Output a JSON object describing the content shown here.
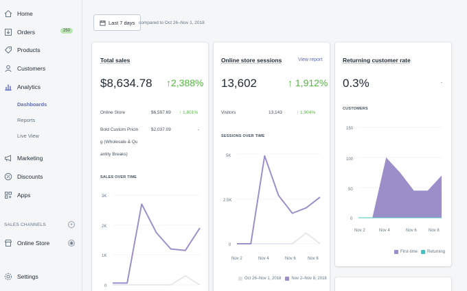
{
  "nav": {
    "home": "Home",
    "orders": "Orders",
    "orders_badge": "250",
    "products": "Products",
    "customers": "Customers",
    "analytics": "Analytics",
    "dashboards": "Dashboards",
    "reports": "Reports",
    "live_view": "Live View",
    "marketing": "Marketing",
    "discounts": "Discounts",
    "apps": "Apps",
    "sales_channels": "SALES CHANNELS",
    "online_store": "Online Store",
    "settings": "Settings"
  },
  "toolbar": {
    "date_range": "Last 7 days",
    "compared": "compared to Oct 26–Nov 1, 2018"
  },
  "total_sales": {
    "title": "Total sales",
    "value": "$8,634.78",
    "delta": "↑2,388%",
    "rows": [
      {
        "label": "Online Store",
        "value": "$6,597.69",
        "delta": "↑ 1,801%"
      },
      {
        "label_lines": [
          "Bold Custom Pricin",
          "g (Wholesale & Qu",
          "antity Breaks)"
        ],
        "value": "$2,037.09",
        "delta": "-"
      }
    ],
    "chart_label": "SALES OVER TIME",
    "y_ticks": [
      "3K",
      "2K",
      "1K",
      "0"
    ]
  },
  "sessions": {
    "title": "Online store sessions",
    "view_report": "View report",
    "value": "13,602",
    "delta": "↑ 1,912%",
    "visitors_label": "Visitors",
    "visitors_value": "13,143",
    "visitors_delta": "↑ 1,904%",
    "chart_label": "SESSIONS OVER TIME",
    "y_ticks": [
      "5K",
      "2.5K",
      "0"
    ],
    "x_ticks": [
      "Nov 2",
      "Nov 4",
      "Nov 6",
      "Nov 8"
    ],
    "legend_prev": "Oct 26–Nov 1, 2018",
    "legend_curr": "Nov 2–Nov 8, 2018"
  },
  "returning": {
    "title": "Returning customer rate",
    "value": "0.3%",
    "delta": "-",
    "chart_label": "CUSTOMERS",
    "y_ticks": [
      "150",
      "100",
      "50",
      "0"
    ],
    "x_ticks": [
      "Nov 2",
      "Nov 4",
      "Nov 6",
      "Nov 8"
    ],
    "legend_first": "First-time",
    "legend_returning": "Returning"
  },
  "colors": {
    "purple": "#9c8ec9",
    "light": "#dfe3e8",
    "teal": "#47c1bf",
    "green": "#50b83c",
    "link": "#5c6ac4"
  },
  "chart_data": [
    {
      "type": "line",
      "title": "SALES OVER TIME",
      "ylim": [
        0,
        3000
      ],
      "x": [
        1,
        2,
        3,
        4,
        5,
        6,
        7
      ],
      "series": [
        {
          "values": [
            60,
            60,
            2700,
            1750,
            1200,
            1150,
            1900
          ]
        },
        {
          "values": [
            0,
            0,
            0,
            0,
            0,
            300,
            0
          ]
        }
      ]
    },
    {
      "type": "line",
      "title": "SESSIONS OVER TIME",
      "ylim": [
        0,
        5000
      ],
      "categories": [
        "Nov 2",
        "Nov 3",
        "Nov 4",
        "Nov 5",
        "Nov 6",
        "Nov 7",
        "Nov 8"
      ],
      "series": [
        {
          "name": "Nov 2–Nov 8, 2018",
          "values": [
            0,
            0,
            4900,
            2700,
            1700,
            2000,
            2600
          ]
        },
        {
          "name": "Oct 26–Nov 1, 2018",
          "values": [
            0,
            0,
            0,
            0,
            0,
            600,
            0
          ]
        }
      ]
    },
    {
      "type": "area",
      "title": "CUSTOMERS",
      "ylim": [
        0,
        150
      ],
      "categories": [
        "Nov 2",
        "Nov 3",
        "Nov 4",
        "Nov 5",
        "Nov 6",
        "Nov 7",
        "Nov 8"
      ],
      "series": [
        {
          "name": "First-time",
          "values": [
            0,
            0,
            100,
            75,
            45,
            45,
            70
          ]
        },
        {
          "name": "Returning",
          "values": [
            0,
            0,
            0,
            0,
            0,
            0,
            0
          ]
        }
      ]
    }
  ]
}
